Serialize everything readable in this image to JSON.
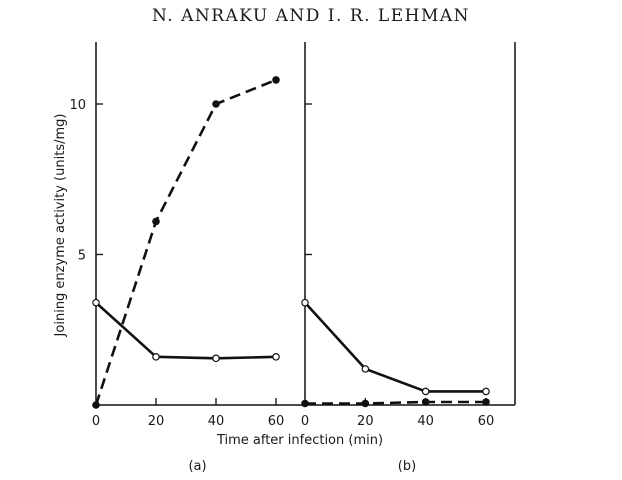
{
  "header": {
    "text": "N. ANRAKU AND I. R. LEHMAN"
  },
  "chart_data": {
    "type": "line",
    "xlabel": "Time after infection (min)",
    "ylabel": "Joining enzyme activity (units/mg)",
    "x_ticks": [
      "0",
      "20",
      "40",
      "60"
    ],
    "y_ticks": [
      "5",
      "10"
    ],
    "xlim": [
      0,
      60
    ],
    "ylim": [
      0,
      10
    ],
    "panels": [
      {
        "label": "(a)",
        "series": [
          {
            "style": "dashed",
            "marker": "filled",
            "x": [
              0,
              20,
              40,
              60
            ],
            "y": [
              0,
              6.1,
              10.0,
              10.8
            ]
          },
          {
            "style": "solid",
            "marker": "open",
            "x": [
              0,
              20,
              40,
              60
            ],
            "y": [
              3.4,
              1.6,
              1.55,
              1.6
            ]
          }
        ]
      },
      {
        "label": "(b)",
        "series": [
          {
            "style": "solid",
            "marker": "open",
            "x": [
              0,
              20,
              40,
              60
            ],
            "y": [
              3.4,
              1.2,
              0.45,
              0.45
            ]
          },
          {
            "style": "dashed",
            "marker": "filled",
            "x": [
              0,
              20,
              40,
              60
            ],
            "y": [
              0.05,
              0.05,
              0.1,
              0.1
            ]
          }
        ]
      }
    ]
  }
}
